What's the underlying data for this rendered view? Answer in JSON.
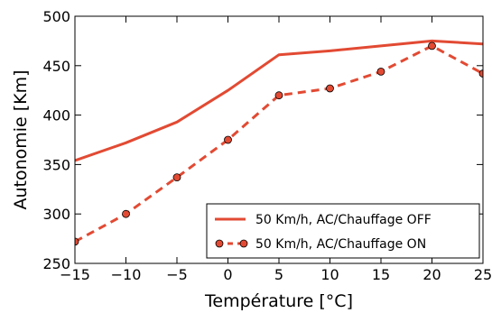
{
  "chart_data": {
    "type": "line",
    "title": "",
    "xlabel": "Température [°C]",
    "ylabel": "Autonomie [Km]",
    "xlim": [
      -15,
      25
    ],
    "ylim": [
      250,
      500
    ],
    "xticks": [
      -15,
      -10,
      -5,
      0,
      5,
      10,
      15,
      20,
      25
    ],
    "yticks": [
      250,
      300,
      350,
      400,
      450,
      500
    ],
    "x": [
      -15,
      -10,
      -5,
      0,
      5,
      10,
      15,
      20,
      25
    ],
    "grid": false,
    "legend_position": "lower-right",
    "series": [
      {
        "name": "50 Km/h, AC/Chauffage OFF",
        "values": [
          354,
          372,
          393,
          425,
          461,
          465,
          470,
          475,
          472
        ],
        "color": "#e24a33",
        "style": "solid",
        "markers": false
      },
      {
        "name": "50 Km/h, AC/Chauffage ON",
        "values": [
          272,
          300,
          337,
          375,
          420,
          427,
          444,
          470,
          442
        ],
        "color": "#e24a33",
        "style": "dashed",
        "markers": true
      }
    ]
  }
}
